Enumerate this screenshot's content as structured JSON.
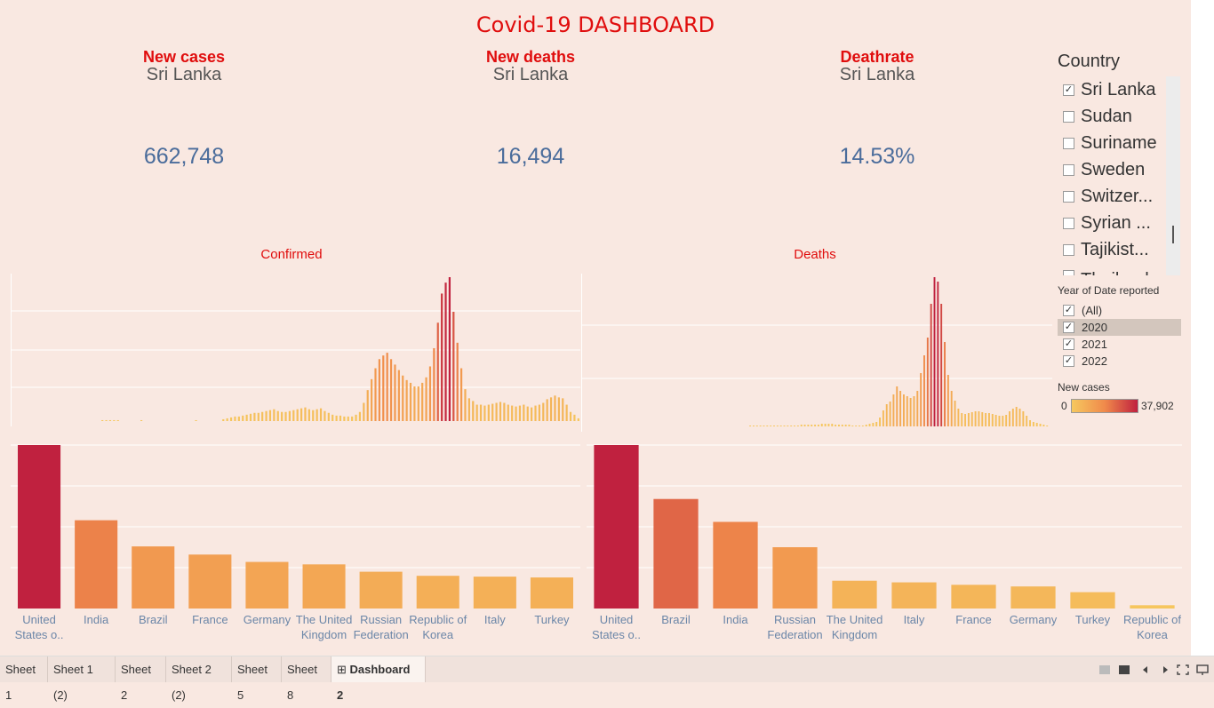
{
  "dashboard_title": "Covid-19 DASHBOARD",
  "kpis": [
    {
      "title": "New cases",
      "country": "Sri Lanka",
      "value": "662,748"
    },
    {
      "title": "New deaths",
      "country": "Sri Lanka",
      "value": "16,494"
    },
    {
      "title": "Deathrate",
      "country": "Sri Lanka",
      "value": "14.53%"
    }
  ],
  "country_filter": {
    "title": "Country",
    "items": [
      {
        "label": "Sri Lanka",
        "checked": true
      },
      {
        "label": "Sudan",
        "checked": false
      },
      {
        "label": "Suriname",
        "checked": false
      },
      {
        "label": "Sweden",
        "checked": false
      },
      {
        "label": "Switzer...",
        "checked": false
      },
      {
        "label": "Syrian ...",
        "checked": false
      },
      {
        "label": "Tajikist...",
        "checked": false
      },
      {
        "label": "Thailand",
        "checked": false
      }
    ]
  },
  "year_filter": {
    "title": "Year of Date reported",
    "items": [
      {
        "label": "(All)",
        "checked": true,
        "selected": false
      },
      {
        "label": "2020",
        "checked": true,
        "selected": true
      },
      {
        "label": "2021",
        "checked": true,
        "selected": false
      },
      {
        "label": "2022",
        "checked": true,
        "selected": false
      }
    ]
  },
  "legend": {
    "title": "New cases",
    "min": "0",
    "max": "37,902",
    "colors": [
      "#f6c85f",
      "#f08a4b",
      "#c0213f"
    ]
  },
  "tabs": [
    "Sheet 1",
    "Sheet 1 (2)",
    "Sheet 2",
    "Sheet 2 (2)",
    "Sheet 5",
    "Sheet 8",
    "Dashboard 2"
  ],
  "active_tab": "Dashboard 2",
  "chart_data": [
    {
      "type": "bar",
      "title": "Confirmed",
      "values": [
        0,
        0,
        0,
        0,
        0,
        0,
        0,
        0,
        0,
        0,
        0,
        0,
        0,
        0,
        0,
        0,
        0,
        0,
        0,
        0,
        0,
        0,
        0,
        1,
        1,
        1,
        1,
        1,
        0,
        0,
        0,
        0,
        0,
        1,
        0,
        0,
        0,
        0,
        0,
        0,
        0,
        0,
        0,
        0,
        0,
        0,
        0,
        1,
        0,
        0,
        0,
        0,
        0,
        0,
        2,
        3,
        4,
        5,
        5,
        6,
        7,
        8,
        9,
        9,
        10,
        11,
        12,
        13,
        11,
        10,
        10,
        11,
        12,
        13,
        14,
        15,
        13,
        12,
        13,
        14,
        11,
        9,
        7,
        6,
        6,
        5,
        5,
        5,
        7,
        10,
        20,
        34,
        46,
        58,
        68,
        72,
        75,
        68,
        62,
        56,
        50,
        45,
        42,
        38,
        38,
        42,
        48,
        60,
        80,
        108,
        140,
        152,
        158,
        120,
        86,
        58,
        35,
        25,
        22,
        18,
        18,
        17,
        18,
        19,
        20,
        21,
        20,
        18,
        17,
        16,
        17,
        18,
        16,
        15,
        17,
        18,
        20,
        24,
        26,
        28,
        26,
        25,
        18,
        10,
        7,
        3
      ]
    },
    {
      "type": "bar",
      "title": "Deaths",
      "values": [
        0,
        0,
        0,
        0,
        0,
        0,
        0,
        0,
        0,
        0,
        0,
        0,
        0,
        0,
        0,
        0,
        0,
        0,
        0,
        0,
        0,
        0,
        0,
        0,
        0,
        0,
        0,
        0,
        0,
        0,
        0,
        0,
        0,
        0,
        0,
        0,
        0,
        0,
        0,
        0,
        0,
        0,
        0,
        0,
        0,
        0,
        0,
        0,
        0,
        1,
        1,
        1,
        1,
        1,
        1,
        1,
        1,
        1,
        1,
        1,
        1,
        1,
        1,
        1,
        2,
        2,
        2,
        2,
        2,
        2,
        3,
        3,
        3,
        3,
        2,
        2,
        2,
        2,
        2,
        1,
        1,
        1,
        1,
        2,
        3,
        4,
        5,
        10,
        18,
        25,
        28,
        36,
        45,
        40,
        36,
        34,
        32,
        34,
        40,
        60,
        80,
        100,
        138,
        168,
        163,
        138,
        95,
        58,
        40,
        29,
        20,
        15,
        14,
        15,
        16,
        17,
        17,
        16,
        15,
        15,
        14,
        13,
        12,
        12,
        13,
        17,
        20,
        22,
        20,
        17,
        12,
        7,
        5,
        4,
        3,
        2,
        1,
        0
      ]
    },
    {
      "type": "bar",
      "title": "",
      "categories": [
        "United States o..",
        "India",
        "Brazil",
        "France",
        "Germany",
        "The United Kingdom",
        "Russian Federation",
        "Republic of Korea",
        "Italy",
        "Turkey"
      ],
      "values": [
        100,
        54,
        38,
        33,
        28.5,
        27,
        22.5,
        20,
        19.5,
        19
      ]
    },
    {
      "type": "bar",
      "title": "",
      "categories": [
        "United States o..",
        "Brazil",
        "India",
        "Russian Federation",
        "The United Kingdom",
        "Italy",
        "France",
        "Germany",
        "Turkey",
        "Republic of Korea"
      ],
      "values": [
        100,
        67,
        53,
        37.5,
        17,
        16,
        14.5,
        13.5,
        10,
        2
      ]
    }
  ]
}
